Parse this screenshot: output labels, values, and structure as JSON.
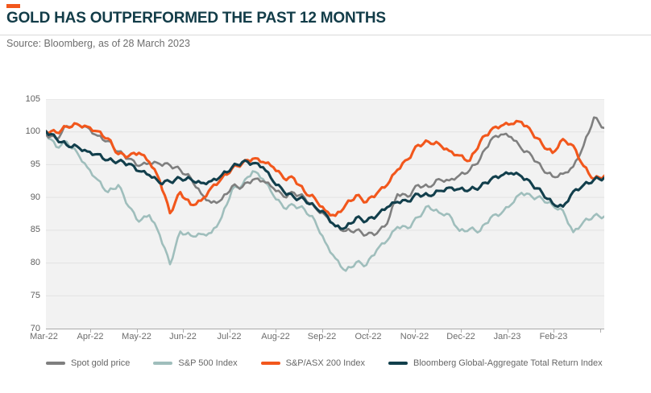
{
  "header": {
    "accent_color": "#f2571c",
    "title": "GOLD HAS OUTPERFORMED THE PAST 12 MONTHS",
    "source": "Source: Bloomberg, as of 28 March 2023"
  },
  "chart_data": {
    "type": "line",
    "title": "GOLD HAS OUTPERFORMED THE PAST 12 MONTHS",
    "subtitle": "Source: Bloomberg, as of 28 March 2023",
    "grid": true,
    "legend_position": "bottom",
    "plot_background": "#f2f2f2",
    "gridline_color": "#e2e2e2",
    "axis_line_color": "#a9a9a9",
    "ylim": [
      70,
      105
    ],
    "y_ticks": [
      105,
      100,
      95,
      90,
      85,
      80,
      75,
      70
    ],
    "x_labels": [
      "Mar-22",
      "Apr-22",
      "May-22",
      "Jun-22",
      "Jul-22",
      "Aug-22",
      "Sep-22",
      "Oct-22",
      "Nov-22",
      "Dec-22",
      "Jan-23",
      "Feb-23"
    ],
    "note": "All series indexed to 100 at start (past 12 months), values sampled at ~weekly intervals",
    "series": [
      {
        "name": "Spot gold price",
        "color": "#7f7f7f",
        "stroke_width": 2.6,
        "values": [
          99.6,
          98.9,
          100.9,
          101.2,
          100.7,
          99.4,
          98.6,
          97.0,
          95.9,
          94.8,
          95.2,
          95.1,
          94.9,
          94.2,
          93.0,
          90.6,
          89.2,
          89.7,
          91.7,
          91.6,
          92.7,
          92.5,
          91.4,
          90.1,
          90.7,
          90.0,
          88.5,
          87.3,
          85.7,
          84.9,
          85.0,
          84.3,
          84.5,
          86.0,
          90.5,
          90.1,
          91.9,
          91.6,
          92.8,
          92.6,
          93.4,
          94.2,
          95.9,
          98.7,
          99.6,
          99.2,
          97.4,
          96.3,
          94.4,
          93.2,
          93.6,
          94.7,
          97.9,
          102.2,
          100.6
        ]
      },
      {
        "name": "S&P 500 Index",
        "color": "#9fbebc",
        "stroke_width": 2.6,
        "values": [
          99.8,
          97.7,
          98.5,
          96.9,
          94.6,
          92.7,
          90.8,
          91.9,
          88.6,
          86.3,
          87.3,
          84.3,
          79.8,
          84.8,
          84.2,
          84.4,
          84.6,
          87.0,
          91.2,
          91.9,
          94.0,
          92.8,
          90.3,
          88.4,
          88.8,
          88.2,
          86.5,
          83.2,
          80.7,
          78.8,
          80.1,
          79.7,
          82.0,
          83.4,
          85.5,
          85.3,
          87.0,
          88.7,
          87.7,
          87.4,
          84.9,
          85.2,
          84.9,
          86.9,
          87.5,
          88.9,
          90.7,
          90.1,
          89.8,
          88.8,
          88.0,
          84.7,
          86.3,
          87.2,
          87.1
        ]
      },
      {
        "name": "S&P/ASX 200 Index",
        "color": "#f2571c",
        "stroke_width": 3.1,
        "values": [
          100.1,
          99.9,
          100.8,
          101.2,
          100.8,
          100.1,
          99.0,
          96.6,
          96.3,
          96.8,
          95.4,
          92.6,
          87.6,
          90.8,
          88.9,
          89.5,
          91.5,
          92.9,
          94.4,
          95.2,
          95.9,
          95.4,
          94.6,
          92.9,
          92.9,
          90.9,
          89.9,
          88.0,
          87.2,
          88.9,
          90.3,
          89.3,
          90.6,
          91.9,
          94.2,
          95.8,
          98.0,
          98.5,
          98.2,
          97.1,
          96.4,
          95.6,
          98.5,
          100.2,
          100.9,
          101.2,
          101.5,
          99.9,
          98.1,
          96.8,
          98.9,
          97.9,
          94.8,
          92.8,
          93.3
        ]
      },
      {
        "name": "Bloomberg Global-Aggregate Total Return Index",
        "color": "#123f4c",
        "stroke_width": 3.1,
        "values": [
          100.1,
          99.0,
          98.0,
          97.8,
          97.0,
          96.6,
          95.7,
          95.5,
          95.1,
          94.0,
          93.4,
          92.2,
          92.4,
          92.9,
          92.8,
          92.2,
          92.5,
          93.4,
          94.6,
          95.4,
          95.2,
          94.6,
          92.4,
          90.9,
          90.0,
          89.7,
          88.6,
          87.6,
          85.6,
          85.4,
          86.9,
          86.4,
          87.2,
          88.5,
          89.3,
          89.4,
          90.5,
          90.3,
          91.0,
          91.5,
          91.3,
          91.2,
          91.6,
          92.7,
          93.3,
          93.7,
          93.2,
          92.0,
          90.7,
          89.1,
          88.6,
          90.9,
          91.9,
          92.7,
          93.0
        ]
      }
    ]
  }
}
